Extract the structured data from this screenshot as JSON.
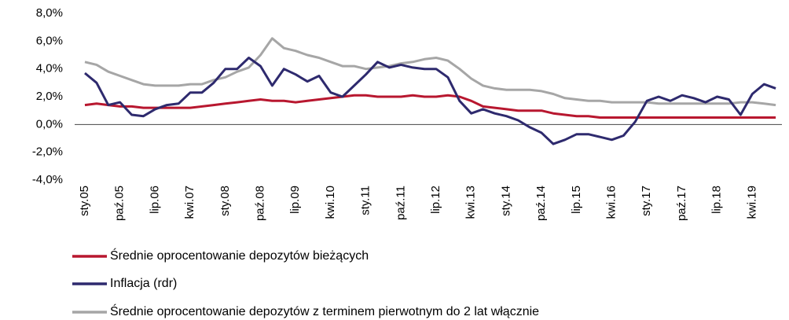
{
  "chart_data": {
    "type": "line",
    "categories": [
      "sty.05",
      null,
      null,
      "paź.05",
      null,
      null,
      "lip.06",
      null,
      null,
      "kwi.07",
      null,
      null,
      "sty.08",
      null,
      null,
      "paź.08",
      null,
      null,
      "lip.09",
      null,
      null,
      "kwi.10",
      null,
      null,
      "sty.11",
      null,
      null,
      "paź.11",
      null,
      null,
      "lip.12",
      null,
      null,
      "kwi.13",
      null,
      null,
      "sty.14",
      null,
      null,
      "paź.14",
      null,
      null,
      "lip.15",
      null,
      null,
      "kwi.16",
      null,
      null,
      "sty.17",
      null,
      null,
      "paź.17",
      null,
      null,
      "lip.18",
      null,
      null,
      "kwi.19",
      null,
      null
    ],
    "series": [
      {
        "name": "Średnie oprocentowanie depozytów bieżących",
        "color": "#b8172f",
        "values": [
          1.4,
          1.5,
          1.4,
          1.3,
          1.3,
          1.2,
          1.2,
          1.2,
          1.2,
          1.2,
          1.3,
          1.4,
          1.5,
          1.6,
          1.7,
          1.8,
          1.7,
          1.7,
          1.6,
          1.7,
          1.8,
          1.9,
          2.0,
          2.1,
          2.1,
          2.0,
          2.0,
          2.0,
          2.1,
          2.0,
          2.0,
          2.1,
          2.0,
          1.7,
          1.3,
          1.2,
          1.1,
          1.0,
          1.0,
          1.0,
          0.8,
          0.7,
          0.6,
          0.6,
          0.5,
          0.5,
          0.5,
          0.5,
          0.5,
          0.5,
          0.5,
          0.5,
          0.5,
          0.5,
          0.5,
          0.5,
          0.5,
          0.5,
          0.5,
          0.5
        ]
      },
      {
        "name": "Inflacja (rdr)",
        "color": "#2e2a6e",
        "values": [
          3.7,
          3.0,
          1.4,
          1.6,
          0.7,
          0.6,
          1.1,
          1.4,
          1.5,
          2.3,
          2.3,
          3.0,
          4.0,
          4.0,
          4.8,
          4.2,
          2.8,
          4.0,
          3.6,
          3.1,
          3.5,
          2.3,
          2.0,
          2.8,
          3.6,
          4.5,
          4.1,
          4.3,
          4.1,
          4.0,
          4.0,
          3.4,
          1.7,
          0.8,
          1.1,
          0.8,
          0.6,
          0.3,
          -0.2,
          -0.6,
          -1.4,
          -1.1,
          -0.7,
          -0.7,
          -0.9,
          -1.1,
          -0.8,
          0.2,
          1.7,
          2.0,
          1.7,
          2.1,
          1.9,
          1.6,
          2.0,
          1.8,
          0.7,
          2.2,
          2.9,
          2.6
        ]
      },
      {
        "name": "Średnie oprocentowanie depozytów z terminem pierwotnym do 2 lat włącznie",
        "color": "#a6a6a6",
        "values": [
          4.5,
          4.3,
          3.8,
          3.5,
          3.2,
          2.9,
          2.8,
          2.8,
          2.8,
          2.9,
          2.9,
          3.2,
          3.4,
          3.8,
          4.1,
          5.0,
          6.2,
          5.5,
          5.3,
          5.0,
          4.8,
          4.5,
          4.2,
          4.2,
          4.0,
          4.1,
          4.2,
          4.4,
          4.5,
          4.7,
          4.8,
          4.6,
          4.0,
          3.3,
          2.8,
          2.6,
          2.5,
          2.5,
          2.5,
          2.4,
          2.2,
          1.9,
          1.8,
          1.7,
          1.7,
          1.6,
          1.6,
          1.6,
          1.6,
          1.5,
          1.5,
          1.5,
          1.5,
          1.5,
          1.5,
          1.5,
          1.6,
          1.6,
          1.5,
          1.4
        ]
      }
    ],
    "ylim": [
      -4,
      8
    ],
    "yticks": [
      {
        "value": -4,
        "label": "-4,0%"
      },
      {
        "value": -2,
        "label": "-2,0%"
      },
      {
        "value": 0,
        "label": "0,0%"
      },
      {
        "value": 2,
        "label": "2,0%"
      },
      {
        "value": 4,
        "label": "4,0%"
      },
      {
        "value": 6,
        "label": "6,0%"
      },
      {
        "value": 8,
        "label": "8,0%"
      }
    ],
    "grid": false
  }
}
